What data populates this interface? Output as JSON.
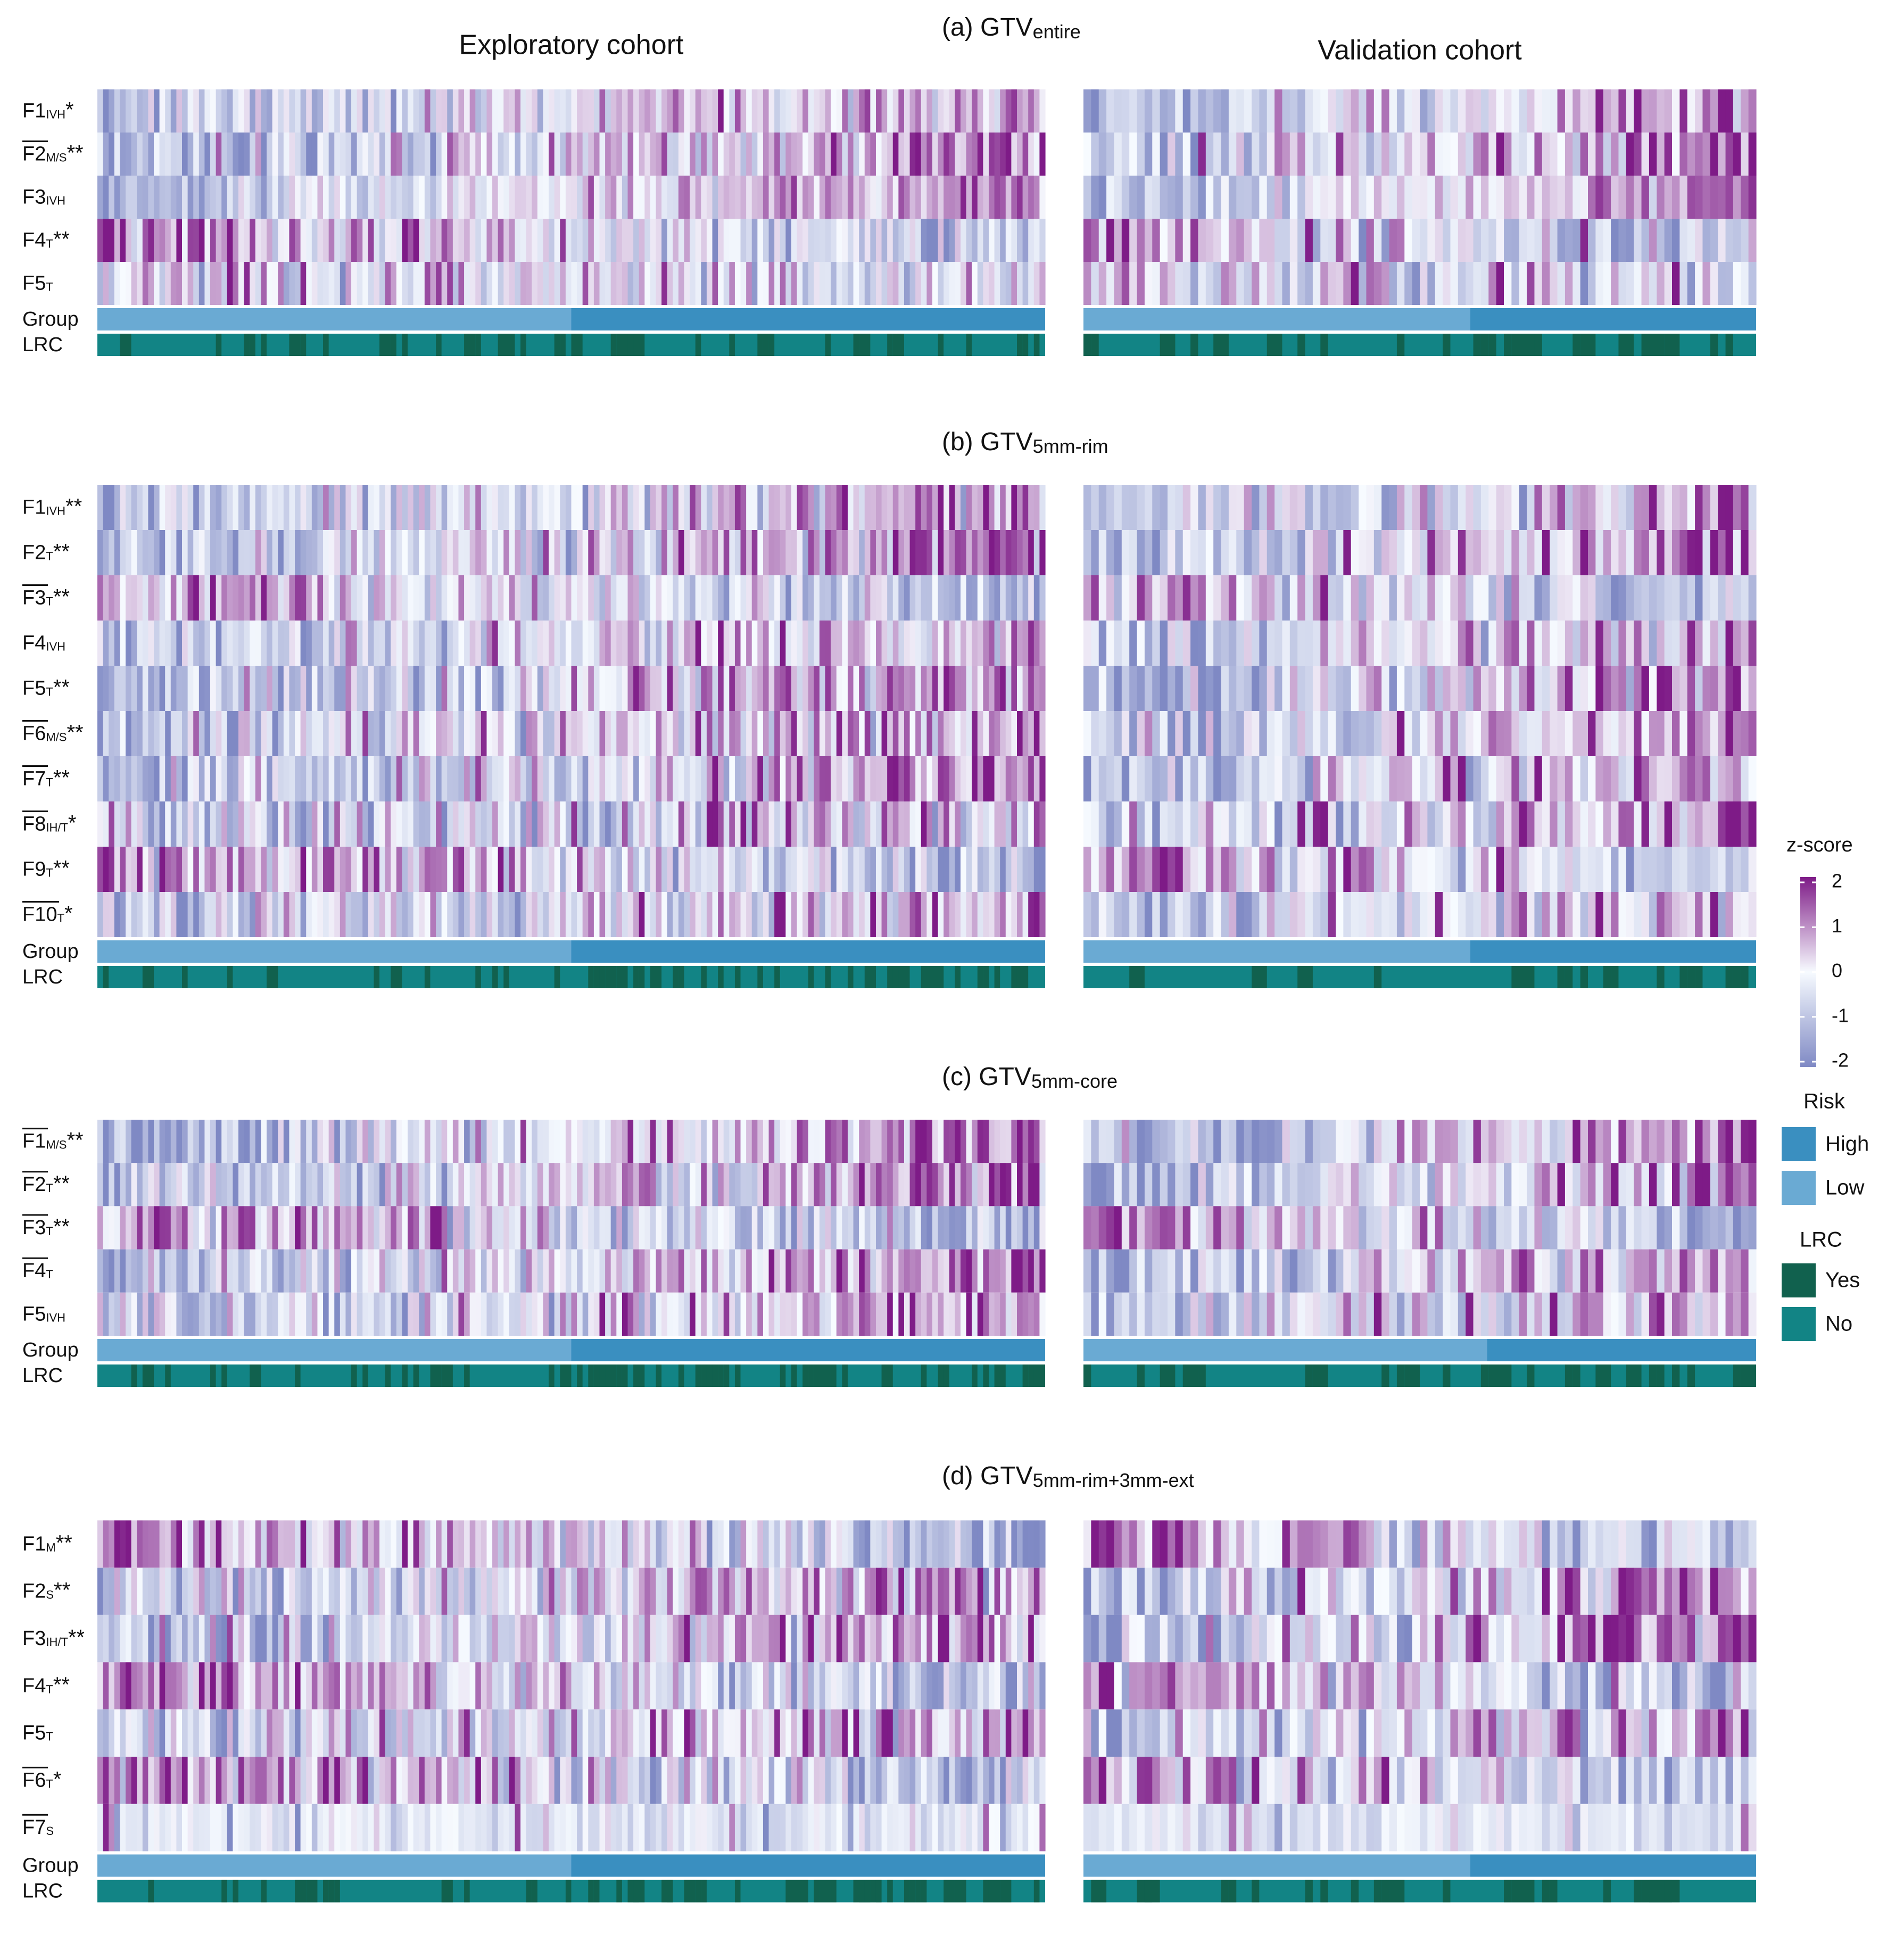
{
  "chart_data": {
    "type": "heatmap",
    "column_titles": {
      "exploratory": "Exploratory cohort",
      "validation": "Validation cohort"
    },
    "n_patients": {
      "exploratory": 168,
      "validation": 88
    },
    "high_risk_fraction": {
      "a": [
        0.5,
        0.425
      ],
      "b": [
        0.5,
        0.425
      ],
      "c": [
        0.5,
        0.4
      ],
      "d": [
        0.5,
        0.425
      ]
    },
    "panels": [
      {
        "id": "a",
        "prefix": "(a) GTV",
        "sub": "entire",
        "features": [
          {
            "base": "F1",
            "sub": "IVH",
            "stars": "*",
            "bar": false,
            "trend": 1.3,
            "noise": 0.7
          },
          {
            "base": "F2",
            "sub": "M/S",
            "stars": "**",
            "bar": true,
            "trend": 1.6,
            "noise": 0.8
          },
          {
            "base": "F3",
            "sub": "IVH",
            "stars": "",
            "bar": false,
            "trend": 1.5,
            "noise": 0.5
          },
          {
            "base": "F4",
            "sub": "T",
            "stars": "**",
            "bar": false,
            "trend": -1.4,
            "noise": 0.8
          },
          {
            "base": "F5",
            "sub": "T",
            "stars": "",
            "bar": false,
            "trend": -0.3,
            "noise": 0.9
          }
        ]
      },
      {
        "id": "b",
        "prefix": "(b) GTV",
        "sub": "5mm-rim",
        "features": [
          {
            "base": "F1",
            "sub": "IVH",
            "stars": "**",
            "bar": false,
            "trend": 1.3,
            "noise": 0.8
          },
          {
            "base": "F2",
            "sub": "T",
            "stars": "**",
            "bar": false,
            "trend": 1.6,
            "noise": 0.8
          },
          {
            "base": "F3",
            "sub": "T",
            "stars": "**",
            "bar": true,
            "trend": -1.4,
            "noise": 0.8
          },
          {
            "base": "F4",
            "sub": "IVH",
            "stars": "",
            "bar": false,
            "trend": 1.0,
            "noise": 0.8
          },
          {
            "base": "F5",
            "sub": "T",
            "stars": "**",
            "bar": false,
            "trend": 1.6,
            "noise": 0.9
          },
          {
            "base": "F6",
            "sub": "M/S",
            "stars": "**",
            "bar": true,
            "trend": 1.5,
            "noise": 0.9
          },
          {
            "base": "F7",
            "sub": "T",
            "stars": "**",
            "bar": true,
            "trend": 1.5,
            "noise": 0.9
          },
          {
            "base": "F8",
            "sub": "IH/T",
            "stars": "*",
            "bar": true,
            "trend": 1.0,
            "noise": 1.0
          },
          {
            "base": "F9",
            "sub": "T",
            "stars": "**",
            "bar": false,
            "trend": -1.5,
            "noise": 0.9
          },
          {
            "base": "F10",
            "sub": "T",
            "stars": "*",
            "bar": true,
            "trend": 1.0,
            "noise": 0.9
          }
        ]
      },
      {
        "id": "c",
        "prefix": "(c) GTV",
        "sub": "5mm-core",
        "features": [
          {
            "base": "F1",
            "sub": "M/S",
            "stars": "**",
            "bar": true,
            "trend": 1.7,
            "noise": 0.8
          },
          {
            "base": "F2",
            "sub": "T",
            "stars": "**",
            "bar": true,
            "trend": 1.6,
            "noise": 0.8
          },
          {
            "base": "F3",
            "sub": "T",
            "stars": "**",
            "bar": true,
            "trend": -1.6,
            "noise": 0.8
          },
          {
            "base": "F4",
            "sub": "T",
            "stars": "",
            "bar": true,
            "trend": 1.5,
            "noise": 0.8
          },
          {
            "base": "F5",
            "sub": "IVH",
            "stars": "",
            "bar": false,
            "trend": 1.0,
            "noise": 0.8
          }
        ]
      },
      {
        "id": "d",
        "prefix": "(d) GTV",
        "sub": "5mm-rim+3mm-ext",
        "features": [
          {
            "base": "F1",
            "sub": "M",
            "stars": "**",
            "bar": false,
            "trend": -1.5,
            "noise": 0.8
          },
          {
            "base": "F2",
            "sub": "S",
            "stars": "**",
            "bar": false,
            "trend": 1.4,
            "noise": 0.9
          },
          {
            "base": "F3",
            "sub": "IH/T",
            "stars": "**",
            "bar": false,
            "trend": 1.5,
            "noise": 0.9
          },
          {
            "base": "F4",
            "sub": "T",
            "stars": "**",
            "bar": false,
            "trend": -1.5,
            "noise": 0.8
          },
          {
            "base": "F5",
            "sub": "T",
            "stars": "",
            "bar": false,
            "trend": 1.3,
            "noise": 0.9
          },
          {
            "base": "F6",
            "sub": "T",
            "stars": "*",
            "bar": true,
            "trend": -1.3,
            "noise": 0.9
          },
          {
            "base": "F7",
            "sub": "S",
            "stars": "",
            "bar": true,
            "trend": 0.0,
            "noise": 0.35
          }
        ]
      }
    ],
    "row_labels": {
      "group": "Group",
      "lrc": "LRC"
    },
    "zscore_legend": {
      "title": "z-score",
      "ticks": [
        "2",
        "1",
        "0",
        "-1",
        "-2"
      ],
      "range": [
        -2,
        2
      ]
    },
    "risk_legend": {
      "title": "Risk",
      "items": [
        {
          "label": "High",
          "color": "#3a8fc0"
        },
        {
          "label": "Low",
          "color": "#6aaad3"
        }
      ]
    },
    "lrc_legend": {
      "title": "LRC",
      "items": [
        {
          "label": "Yes",
          "color": "#11614e"
        },
        {
          "label": "No",
          "color": "#128485"
        }
      ]
    },
    "colors": {
      "z_low": "#7f89c4",
      "z_mid": "#f7fbff",
      "z_high": "#7e1b87",
      "high_risk": "#3a8fc0",
      "low_risk": "#6aaad3",
      "lrc_yes": "#11614e",
      "lrc_no": "#128485"
    }
  }
}
